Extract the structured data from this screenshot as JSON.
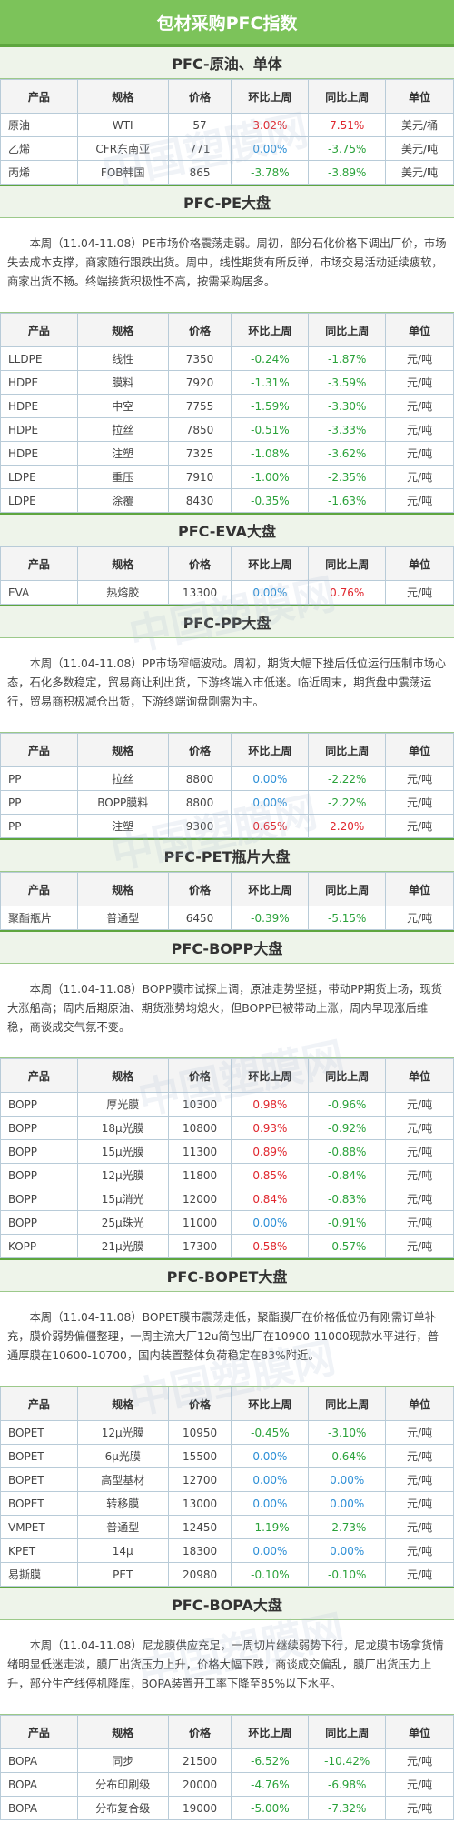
{
  "header": {
    "title": "包材采购PFC指数"
  },
  "watermark": "中国塑膜网",
  "sections": [
    {
      "title": "PFC-原油、单体",
      "table": {
        "columns": [
          "产品",
          "规格",
          "价格",
          "环比上周",
          "同比上周",
          "单位"
        ],
        "rows": [
          [
            "原油",
            "WTI",
            "57",
            "3.02%",
            "7.51%",
            "美元/桶"
          ],
          [
            "乙烯",
            "CFR东南亚",
            "771",
            "0.00%",
            "-3.75%",
            "美元/吨"
          ],
          [
            "丙烯",
            "FOB韩国",
            "865",
            "-3.78%",
            "-3.89%",
            "美元/吨"
          ]
        ]
      }
    },
    {
      "title": "PFC-PE大盘",
      "paragraph": "本周（11.04-11.08）PE市场价格震荡走弱。周初，部分石化价格下调出厂价，市场失去成本支撑，商家随行跟跌出货。周中，线性期货有所反弹，市场交易活动延续疲软，商家出货不畅。终端接货积极性不高，按需采购居多。",
      "table": {
        "columns": [
          "产品",
          "规格",
          "价格",
          "环比上周",
          "同比上周",
          "单位"
        ],
        "rows": [
          [
            "LLDPE",
            "线性",
            "7350",
            "-0.24%",
            "-1.87%",
            "元/吨"
          ],
          [
            "HDPE",
            "膜料",
            "7920",
            "-1.31%",
            "-3.59%",
            "元/吨"
          ],
          [
            "HDPE",
            "中空",
            "7755",
            "-1.59%",
            "-3.30%",
            "元/吨"
          ],
          [
            "HDPE",
            "拉丝",
            "7850",
            "-0.51%",
            "-3.33%",
            "元/吨"
          ],
          [
            "HDPE",
            "注塑",
            "7325",
            "-1.08%",
            "-3.62%",
            "元/吨"
          ],
          [
            "LDPE",
            "重压",
            "7910",
            "-1.00%",
            "-2.35%",
            "元/吨"
          ],
          [
            "LDPE",
            "涂覆",
            "8430",
            "-0.35%",
            "-1.63%",
            "元/吨"
          ]
        ]
      }
    },
    {
      "title": "PFC-EVA大盘",
      "table": {
        "columns": [
          "产品",
          "规格",
          "价格",
          "环比上周",
          "同比上周",
          "单位"
        ],
        "rows": [
          [
            "EVA",
            "热熔胶",
            "13300",
            "0.00%",
            "0.76%",
            "元/吨"
          ]
        ]
      }
    },
    {
      "title": "PFC-PP大盘",
      "paragraph": "本周（11.04-11.08）PP市场窄幅波动。周初，期货大幅下挫后低位运行压制市场心态，石化多数稳定，贸易商让利出货，下游终端入市低迷。临近周末，期货盘中震荡运行，贸易商积极减仓出货，下游终端询盘刚需为主。",
      "table": {
        "columns": [
          "产品",
          "规格",
          "价格",
          "环比上周",
          "同比上周",
          "单位"
        ],
        "rows": [
          [
            "PP",
            "拉丝",
            "8800",
            "0.00%",
            "-2.22%",
            "元/吨"
          ],
          [
            "PP",
            "BOPP膜料",
            "8800",
            "0.00%",
            "-2.22%",
            "元/吨"
          ],
          [
            "PP",
            "注塑",
            "9300",
            "0.65%",
            "2.20%",
            "元/吨"
          ]
        ]
      }
    },
    {
      "title": "PFC-PET瓶片大盘",
      "table": {
        "columns": [
          "产品",
          "规格",
          "价格",
          "环比上周",
          "同比上周",
          "单位"
        ],
        "rows": [
          [
            "聚酯瓶片",
            "普通型",
            "6450",
            "-0.39%",
            "-5.15%",
            "元/吨"
          ]
        ]
      }
    },
    {
      "title": "PFC-BOPP大盘",
      "paragraph": "本周（11.04-11.08）BOPP膜市试探上调，原油走势坚挺，带动PP期货上场，现货大涨船高；周内后期原油、期货涨势均熄火，但BOPP已被带动上涨，周内早现涨后维稳，商谈成交气氛不变。",
      "table": {
        "columns": [
          "产品",
          "规格",
          "价格",
          "环比上周",
          "同比上周",
          "单位"
        ],
        "rows": [
          [
            "BOPP",
            "厚光膜",
            "10300",
            "0.98%",
            "-0.96%",
            "元/吨"
          ],
          [
            "BOPP",
            "18μ光膜",
            "10800",
            "0.93%",
            "-0.92%",
            "元/吨"
          ],
          [
            "BOPP",
            "15μ光膜",
            "11300",
            "0.89%",
            "-0.88%",
            "元/吨"
          ],
          [
            "BOPP",
            "12μ光膜",
            "11800",
            "0.85%",
            "-0.84%",
            "元/吨"
          ],
          [
            "BOPP",
            "15μ消光",
            "12000",
            "0.84%",
            "-0.83%",
            "元/吨"
          ],
          [
            "BOPP",
            "25μ珠光",
            "11000",
            "0.00%",
            "-0.91%",
            "元/吨"
          ],
          [
            "KOPP",
            "21μ光膜",
            "17300",
            "0.58%",
            "-0.57%",
            "元/吨"
          ]
        ]
      }
    },
    {
      "title": "PFC-BOPET大盘",
      "paragraph": "本周（11.04-11.08）BOPET膜市震荡走低，聚酯膜厂在价格低位仍有刚需订单补充，膜价弱势偏僵整理，一周主流大厂12u简包出厂在10900-11000现款水平进行，普通厚膜在10600-10700，国内装置整体负荷稳定在83%附近。",
      "table": {
        "columns": [
          "产品",
          "规格",
          "价格",
          "环比上周",
          "同比上周",
          "单位"
        ],
        "rows": [
          [
            "BOPET",
            "12μ光膜",
            "10950",
            "-0.45%",
            "-3.10%",
            "元/吨"
          ],
          [
            "BOPET",
            "6μ光膜",
            "15500",
            "0.00%",
            "-0.64%",
            "元/吨"
          ],
          [
            "BOPET",
            "高型基材",
            "12700",
            "0.00%",
            "0.00%",
            "元/吨"
          ],
          [
            "BOPET",
            "转移膜",
            "13000",
            "0.00%",
            "0.00%",
            "元/吨"
          ],
          [
            "VMPET",
            "普通型",
            "12450",
            "-1.19%",
            "-2.73%",
            "元/吨"
          ],
          [
            "KPET",
            "14μ",
            "18300",
            "0.00%",
            "0.00%",
            "元/吨"
          ],
          [
            "易撕膜",
            "PET",
            "20980",
            "-0.10%",
            "-0.10%",
            "元/吨"
          ]
        ]
      }
    },
    {
      "title": "PFC-BOPA大盘",
      "paragraph": "本周（11.04-11.08）尼龙膜供应充足，一周切片继续弱势下行，尼龙膜市场拿货情绪明显低迷走淡，膜厂出货压力上升，价格大幅下跌，商谈成交偏乱，膜厂出货压力上升，部分生产线停机降库，BOPA装置开工率下降至85%以下水平。",
      "table": {
        "columns": [
          "产品",
          "规格",
          "价格",
          "环比上周",
          "同比上周",
          "单位"
        ],
        "rows": [
          [
            "BOPA",
            "同步",
            "21500",
            "-6.52%",
            "-10.42%",
            "元/吨"
          ],
          [
            "BOPA",
            "分布印刷级",
            "20000",
            "-4.76%",
            "-6.98%",
            "元/吨"
          ],
          [
            "BOPA",
            "分布复合级",
            "19000",
            "-5.00%",
            "-7.32%",
            "元/吨"
          ]
        ]
      }
    }
  ]
}
